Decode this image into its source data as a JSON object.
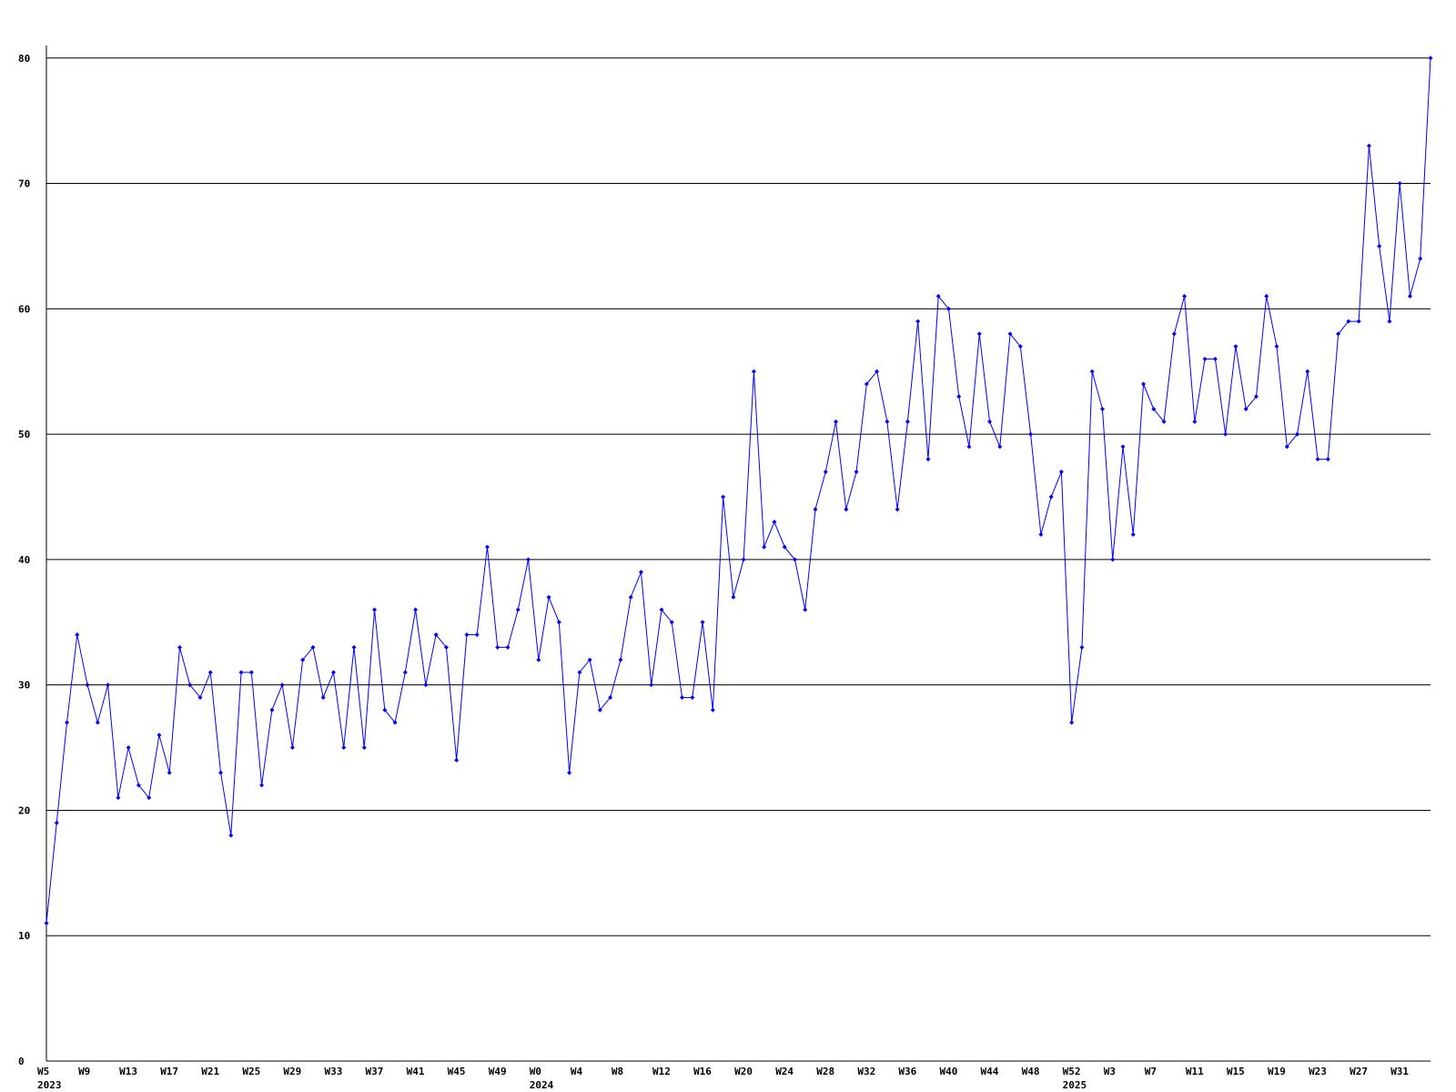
{
  "chart_data": {
    "type": "line",
    "categories": [
      "W5",
      null,
      null,
      null,
      "W9",
      null,
      null,
      null,
      "W13",
      null,
      null,
      null,
      "W17",
      null,
      null,
      null,
      "W21",
      null,
      null,
      null,
      "W25",
      null,
      null,
      null,
      "W29",
      null,
      null,
      null,
      "W33",
      null,
      null,
      null,
      "W37",
      null,
      null,
      null,
      "W41",
      null,
      null,
      null,
      "W45",
      null,
      null,
      null,
      "W49",
      null,
      null,
      null,
      "W0",
      null,
      null,
      null,
      "W4",
      null,
      null,
      null,
      "W8",
      null,
      null,
      null,
      "W12",
      null,
      null,
      null,
      "W16",
      null,
      null,
      null,
      "W20",
      null,
      null,
      null,
      "W24",
      null,
      null,
      null,
      "W28",
      null,
      null,
      null,
      "W32",
      null,
      null,
      null,
      "W36",
      null,
      null,
      null,
      "W40",
      null,
      null,
      null,
      "W44",
      null,
      null,
      null,
      "W48",
      null,
      null,
      null,
      "W52",
      null,
      null,
      null,
      "W3",
      null,
      null,
      null,
      "W7",
      null,
      null,
      null,
      "W11",
      null,
      null,
      null,
      "W15",
      null,
      null,
      null,
      "W19",
      null,
      null,
      null,
      "W23",
      null,
      null,
      null,
      "W27",
      null,
      null,
      null,
      "W31",
      null,
      null,
      null
    ],
    "category_years": [
      "2023",
      null,
      null,
      null,
      null,
      null,
      null,
      null,
      null,
      null,
      null,
      null,
      null,
      null,
      null,
      null,
      null,
      null,
      null,
      null,
      null,
      null,
      null,
      null,
      null,
      null,
      null,
      null,
      null,
      null,
      null,
      null,
      null,
      null,
      null,
      null,
      null,
      null,
      null,
      null,
      null,
      null,
      null,
      null,
      null,
      null,
      null,
      null,
      "2024",
      null,
      null,
      null,
      null,
      null,
      null,
      null,
      null,
      null,
      null,
      null,
      null,
      null,
      null,
      null,
      null,
      null,
      null,
      null,
      null,
      null,
      null,
      null,
      null,
      null,
      null,
      null,
      null,
      null,
      null,
      null,
      null,
      null,
      null,
      null,
      null,
      null,
      null,
      null,
      null,
      null,
      null,
      null,
      null,
      null,
      null,
      null,
      null,
      null,
      null,
      null,
      "2025",
      null,
      null,
      null,
      null,
      null,
      null,
      null,
      null,
      null,
      null,
      null,
      null,
      null,
      null,
      null,
      null,
      null,
      null,
      null,
      null,
      null,
      null,
      null,
      null,
      null,
      null,
      null,
      null,
      null,
      null,
      null,
      null,
      null,
      null,
      null
    ],
    "series": [
      {
        "color": "#0000ff",
        "values": [
          11,
          19,
          27,
          34,
          30,
          27,
          30,
          21,
          25,
          22,
          21,
          26,
          23,
          33,
          30,
          29,
          31,
          23,
          18,
          31,
          31,
          22,
          28,
          30,
          25,
          32,
          33,
          29,
          31,
          25,
          33,
          25,
          36,
          28,
          27,
          31,
          36,
          30,
          34,
          33,
          24,
          34,
          34,
          41,
          33,
          33,
          36,
          40,
          32,
          37,
          35,
          23,
          31,
          32,
          28,
          29,
          32,
          37,
          39,
          30,
          36,
          35,
          29,
          29,
          35,
          28,
          45,
          37,
          40,
          55,
          41,
          43,
          41,
          40,
          36,
          44,
          47,
          51,
          44,
          47,
          54,
          55,
          51,
          44,
          51,
          59,
          48,
          61,
          60,
          53,
          49,
          58,
          51,
          49,
          58,
          57,
          50,
          42,
          45,
          47,
          27,
          33,
          55,
          52,
          40,
          49,
          42,
          54,
          52,
          51,
          58,
          61,
          51,
          56,
          56,
          50,
          57,
          52,
          53,
          61,
          57,
          49,
          50,
          55,
          48,
          48,
          58,
          59,
          59,
          73,
          65,
          59,
          70,
          61,
          64,
          80
        ]
      }
    ],
    "ylim": [
      0,
      81
    ],
    "yticks": [
      0,
      10,
      20,
      30,
      40,
      50,
      60,
      70,
      80
    ],
    "grid": true
  }
}
